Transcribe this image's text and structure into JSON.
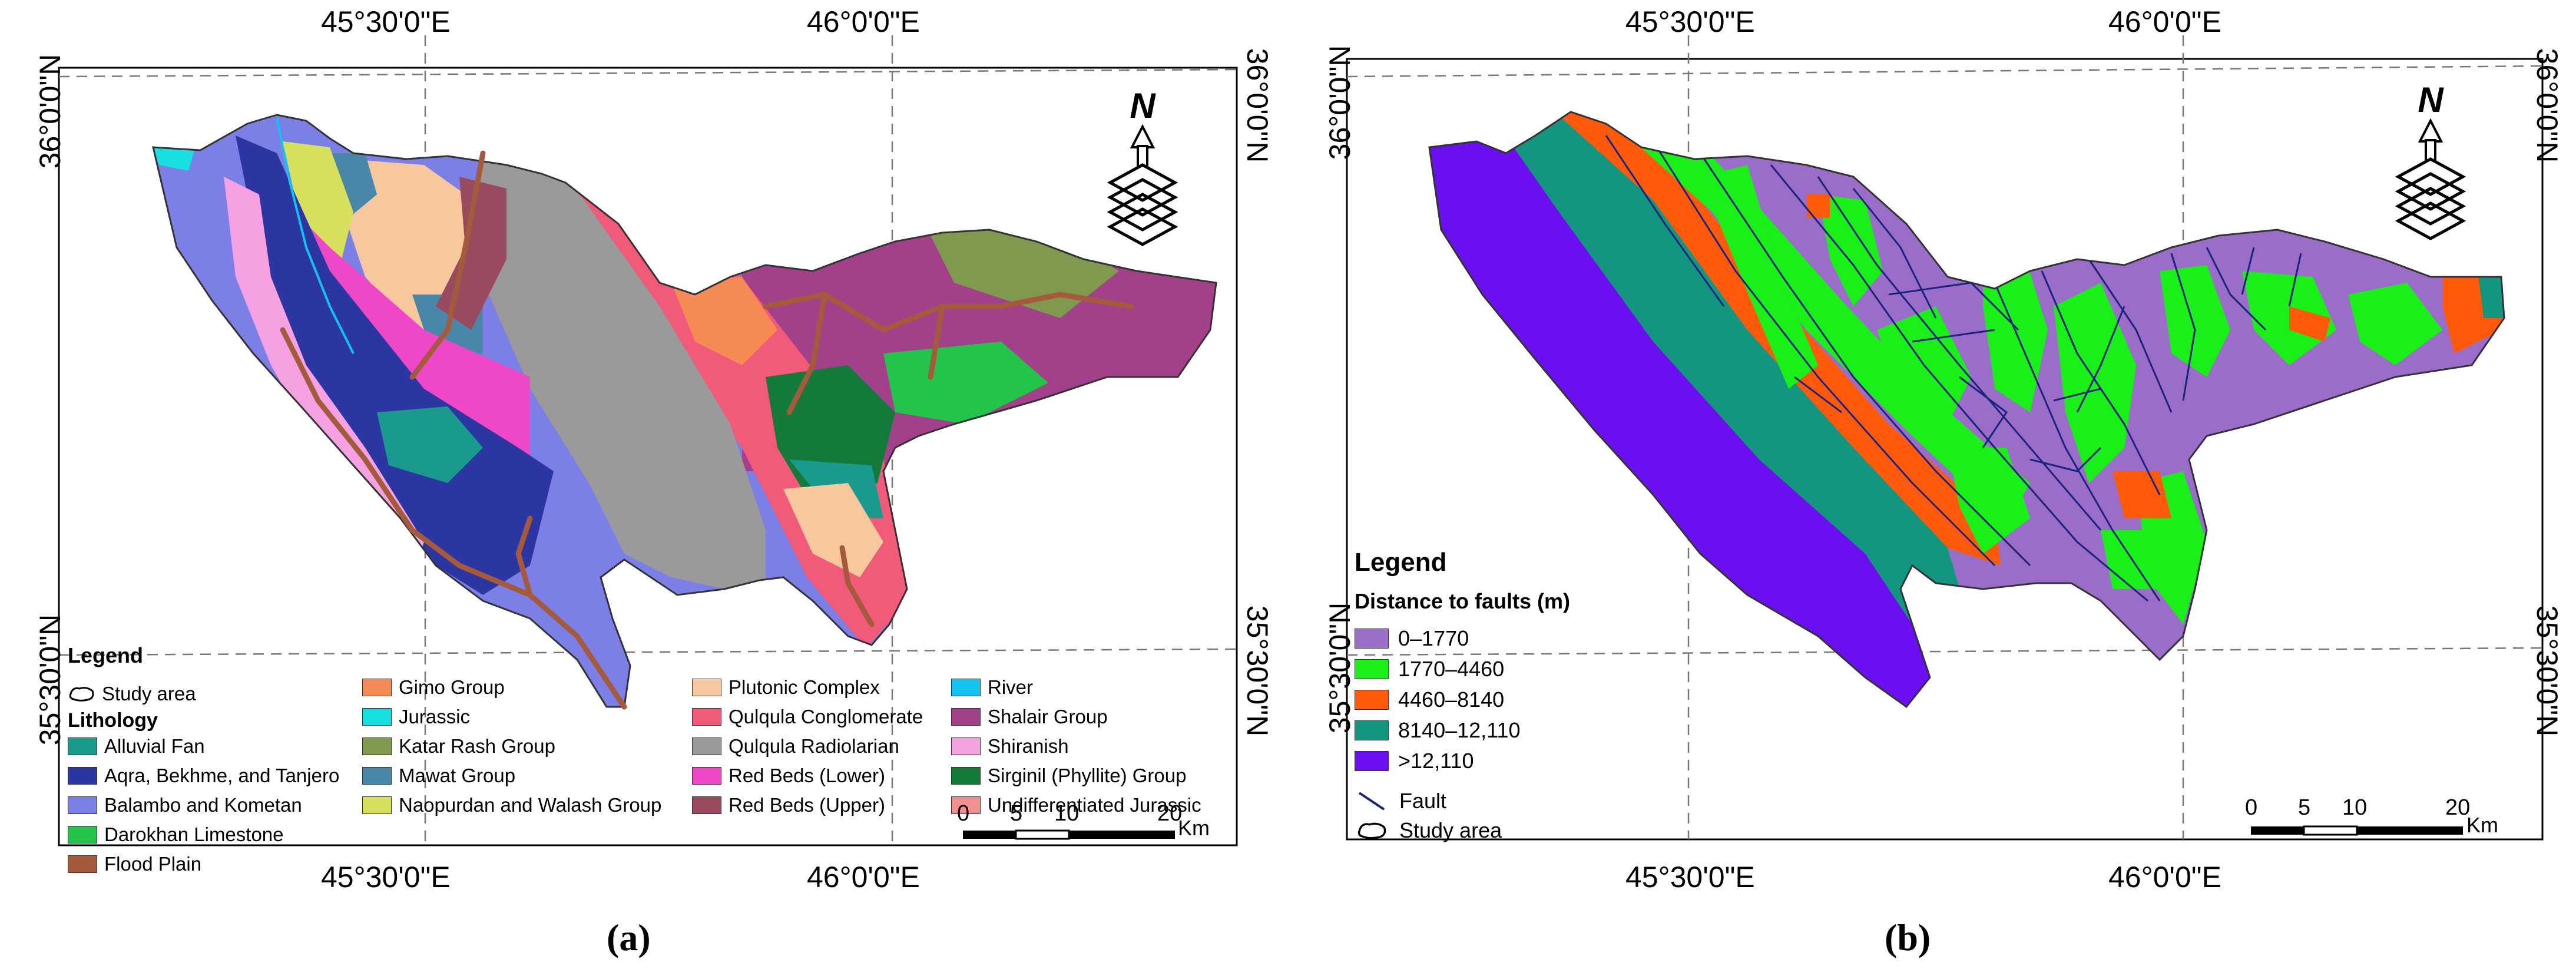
{
  "map_a": {
    "lon_labels": [
      "45°30'0\"E",
      "46°0'0\"E"
    ],
    "lat_labels": [
      "36°0'0\"N",
      "35°30'0\"N"
    ],
    "legend": {
      "title": "Legend",
      "study_area": "Study area",
      "lithology_title": "Lithology",
      "items": [
        {
          "label": "Alluvial Fan",
          "color": "#1a9a8c"
        },
        {
          "label": "Aqra, Bekhme, and Tanjero",
          "color": "#2b36a3"
        },
        {
          "label": "Balambo and Kometan",
          "color": "#7b7fe6"
        },
        {
          "label": "Darokhan Limestone",
          "color": "#22c44a"
        },
        {
          "label": "Flood Plain",
          "color": "#a65a3c"
        },
        {
          "label": "Gimo Group",
          "color": "#f58a55"
        },
        {
          "label": "Jurassic",
          "color": "#19e0e0"
        },
        {
          "label": "Katar Rash Group",
          "color": "#7f9a4e"
        },
        {
          "label": "Mawat Group",
          "color": "#4a86a8"
        },
        {
          "label": "Naopurdan and Walash Group",
          "color": "#d7e05c"
        },
        {
          "label": "Plutonic Complex",
          "color": "#f7c79d"
        },
        {
          "label": "Qulqula Conglomerate",
          "color": "#f25a7a"
        },
        {
          "label": "Qulqula Radiolarian",
          "color": "#9a9a9a"
        },
        {
          "label": "Red Beds (Lower)",
          "color": "#ee48c8"
        },
        {
          "label": "Red Beds (Upper)",
          "color": "#9a4a5e"
        },
        {
          "label": "River",
          "color": "#12c2f0"
        },
        {
          "label": "Shalair Group",
          "color": "#a2408a"
        },
        {
          "label": "Shiranish",
          "color": "#f6a2e2"
        },
        {
          "label": "Sirginil (Phyllite) Group",
          "color": "#137a3a"
        },
        {
          "label": "Undifferentiated Jurassic",
          "color": "#f09090"
        }
      ]
    },
    "scale": {
      "ticks": [
        "0",
        "5",
        "10",
        "20"
      ],
      "unit": "Km"
    },
    "caption": "(a)"
  },
  "map_b": {
    "lon_labels": [
      "45°30'0\"E",
      "46°0'0\"E"
    ],
    "lat_labels": [
      "36°0'0\"N",
      "35°30'0\"N"
    ],
    "legend": {
      "title": "Legend",
      "subtitle": "Distance to faults (m)",
      "classes": [
        {
          "label": "0–1770",
          "color": "#9a6ec8"
        },
        {
          "label": "1770–4460",
          "color": "#18f018"
        },
        {
          "label": "4460–8140",
          "color": "#ff5a0a"
        },
        {
          "label": "8140–12,110",
          "color": "#129680"
        },
        {
          "label": ">12,110",
          "color": "#6a0ff0"
        }
      ],
      "fault_label": "Fault",
      "fault_color": "#1a237e",
      "study_area": "Study area"
    },
    "scale": {
      "ticks": [
        "0",
        "5",
        "10",
        "20"
      ],
      "unit": "Km"
    },
    "caption": "(b)"
  }
}
